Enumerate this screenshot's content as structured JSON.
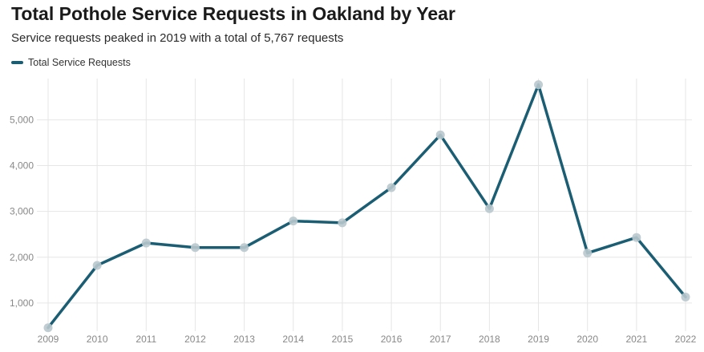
{
  "chart_data": {
    "type": "line",
    "title": "Total Pothole Service Requests in Oakland by Year",
    "subtitle": "Service requests peaked in 2019 with a total of 5,767 requests",
    "xlabel": "",
    "ylabel": "",
    "x": [
      "2009",
      "2010",
      "2011",
      "2012",
      "2013",
      "2014",
      "2015",
      "2016",
      "2017",
      "2018",
      "2019",
      "2020",
      "2021",
      "2022"
    ],
    "series": [
      {
        "name": "Total Service Requests",
        "color": "#1b5e74",
        "values": [
          460,
          1820,
          2310,
          2210,
          2210,
          2790,
          2750,
          3520,
          4670,
          3060,
          5767,
          2090,
          2430,
          1130
        ]
      }
    ],
    "yticks": [
      1000,
      2000,
      3000,
      4000,
      5000
    ],
    "ytick_labels": [
      "1,000",
      "2,000",
      "3,000",
      "4,000",
      "5,000"
    ],
    "ylim": [
      420,
      5900
    ],
    "grid": true,
    "legend_position": "top-left",
    "marker_color": "#b9c8cd"
  }
}
